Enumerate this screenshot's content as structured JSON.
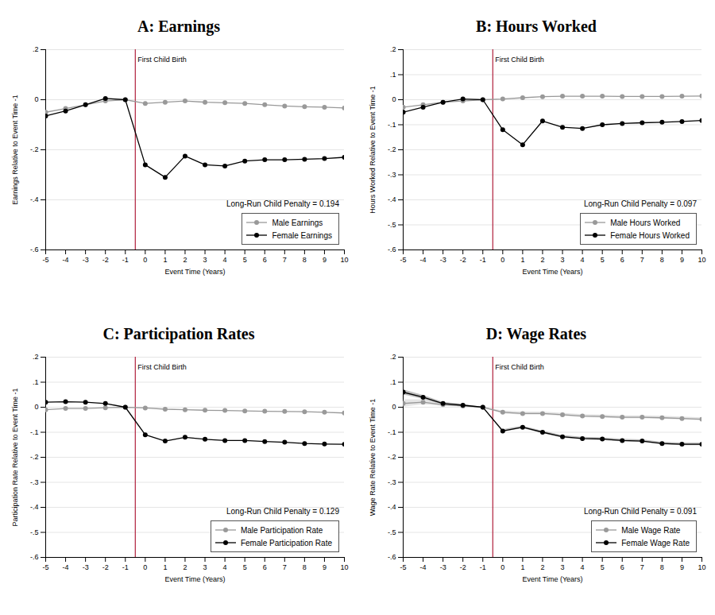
{
  "chart_data": [
    {
      "type": "line",
      "title": "A: Earnings",
      "x_label": "Event Time (Years)",
      "y_label": "Earnings Relative to Event Time -1",
      "x": [
        -5,
        -4,
        -3,
        -2,
        -1,
        0,
        1,
        2,
        3,
        4,
        5,
        6,
        7,
        8,
        9,
        10
      ],
      "series": [
        {
          "name": "Male Earnings",
          "color": "#999999",
          "marker": "circle",
          "values": [
            -0.05,
            -0.035,
            -0.02,
            -0.005,
            0,
            -0.015,
            -0.01,
            -0.005,
            -0.01,
            -0.012,
            -0.015,
            -0.02,
            -0.025,
            -0.028,
            -0.03,
            -0.033
          ]
        },
        {
          "name": "Female Earnings",
          "color": "#000000",
          "marker": "circle",
          "values": [
            -0.065,
            -0.045,
            -0.02,
            0.005,
            0,
            -0.26,
            -0.31,
            -0.225,
            -0.26,
            -0.265,
            -0.245,
            -0.24,
            -0.24,
            -0.238,
            -0.235,
            -0.23
          ]
        }
      ],
      "xlim": [
        -5,
        10
      ],
      "xticks": [
        -5,
        -4,
        -3,
        -2,
        -1,
        0,
        1,
        2,
        3,
        4,
        5,
        6,
        7,
        8,
        9,
        10
      ],
      "ylim": [
        -0.6,
        0.2
      ],
      "yticks": [
        {
          "value": 0.2,
          "label": ".2"
        },
        0,
        {
          "value": -0.2,
          "label": "-.2"
        },
        {
          "value": -0.4,
          "label": "-.4"
        },
        {
          "value": -0.6,
          "label": "-.6"
        }
      ],
      "grid": true,
      "legend": "bottom-right",
      "annotations": [
        {
          "text": "First Child Birth",
          "x": -0.5
        },
        {
          "text": "Long-Run Child Penalty = 0.194"
        }
      ]
    },
    {
      "type": "line",
      "title": "B: Hours Worked",
      "x_label": "Event Time (Years)",
      "y_label": "Hours Worked Relative to Event Time -1",
      "x": [
        -5,
        -4,
        -3,
        -2,
        -1,
        0,
        1,
        2,
        3,
        4,
        5,
        6,
        7,
        8,
        9,
        10
      ],
      "series": [
        {
          "name": "Male Hours Worked",
          "color": "#999999",
          "marker": "circle",
          "values": [
            -0.03,
            -0.02,
            -0.01,
            -0.005,
            0,
            0.003,
            0.008,
            0.012,
            0.014,
            0.014,
            0.014,
            0.013,
            0.013,
            0.013,
            0.014,
            0.015
          ]
        },
        {
          "name": "Female Hours Worked",
          "color": "#000000",
          "marker": "circle",
          "values": [
            -0.05,
            -0.03,
            -0.01,
            0.003,
            0,
            -0.12,
            -0.18,
            -0.085,
            -0.11,
            -0.115,
            -0.1,
            -0.095,
            -0.092,
            -0.09,
            -0.087,
            -0.083
          ]
        }
      ],
      "xlim": [
        -5,
        10
      ],
      "xticks": [
        -5,
        -4,
        -3,
        -2,
        -1,
        0,
        1,
        2,
        3,
        4,
        5,
        6,
        7,
        8,
        9,
        10
      ],
      "ylim": [
        -0.6,
        0.2
      ],
      "yticks": [
        {
          "value": 0.2,
          "label": ".2"
        },
        {
          "value": 0.1,
          "label": ".1"
        },
        0,
        {
          "value": -0.1,
          "label": "-.1"
        },
        {
          "value": -0.2,
          "label": "-.2"
        },
        {
          "value": -0.3,
          "label": "-.3"
        },
        {
          "value": -0.4,
          "label": "-.4"
        },
        {
          "value": -0.5,
          "label": "-.5"
        },
        {
          "value": -0.6,
          "label": "-.6"
        }
      ],
      "grid": true,
      "legend": "bottom-right",
      "annotations": [
        {
          "text": "First Child Birth",
          "x": -0.5
        },
        {
          "text": "Long-Run Child Penalty = 0.097"
        }
      ]
    },
    {
      "type": "line",
      "title": "C: Participation Rates",
      "x_label": "Event Time (Years)",
      "y_label": "Participation Rate Relative to Event Time -1",
      "x": [
        -5,
        -4,
        -3,
        -2,
        -1,
        0,
        1,
        2,
        3,
        4,
        5,
        6,
        7,
        8,
        9,
        10
      ],
      "series": [
        {
          "name": "Male Participation Rate",
          "color": "#999999",
          "marker": "circle",
          "values": [
            -0.01,
            -0.005,
            -0.005,
            -0.002,
            0,
            -0.003,
            -0.008,
            -0.01,
            -0.012,
            -0.013,
            -0.015,
            -0.016,
            -0.017,
            -0.018,
            -0.02,
            -0.023
          ]
        },
        {
          "name": "Female Participation Rate",
          "color": "#000000",
          "marker": "circle",
          "values": [
            0.02,
            0.022,
            0.02,
            0.015,
            0,
            -0.11,
            -0.135,
            -0.12,
            -0.128,
            -0.133,
            -0.133,
            -0.137,
            -0.14,
            -0.145,
            -0.147,
            -0.148
          ]
        }
      ],
      "xlim": [
        -5,
        10
      ],
      "xticks": [
        -5,
        -4,
        -3,
        -2,
        -1,
        0,
        1,
        2,
        3,
        4,
        5,
        6,
        7,
        8,
        9,
        10
      ],
      "ylim": [
        -0.6,
        0.2
      ],
      "yticks": [
        {
          "value": 0.2,
          "label": ".2"
        },
        {
          "value": 0.1,
          "label": ".1"
        },
        0,
        {
          "value": -0.1,
          "label": "-.1"
        },
        {
          "value": -0.2,
          "label": "-.2"
        },
        {
          "value": -0.3,
          "label": "-.3"
        },
        {
          "value": -0.4,
          "label": "-.4"
        },
        {
          "value": -0.5,
          "label": "-.5"
        },
        {
          "value": -0.6,
          "label": "-.6"
        }
      ],
      "grid": true,
      "legend": "bottom-right",
      "annotations": [
        {
          "text": "First Child Birth",
          "x": -0.5
        },
        {
          "text": "Long-Run Child Penalty = 0.129"
        }
      ]
    },
    {
      "type": "line",
      "title": "D: Wage Rates",
      "x_label": "Event Time (Years)",
      "y_label": "Wage Rate Relative to Event Time -1",
      "x": [
        -5,
        -4,
        -3,
        -2,
        -1,
        0,
        1,
        2,
        3,
        4,
        5,
        6,
        7,
        8,
        9,
        10
      ],
      "series": [
        {
          "name": "Male Wage Rate",
          "color": "#999999",
          "marker": "circle",
          "values": [
            0.015,
            0.02,
            0.01,
            0.005,
            0,
            -0.02,
            -0.025,
            -0.025,
            -0.03,
            -0.035,
            -0.037,
            -0.04,
            -0.04,
            -0.042,
            -0.045,
            -0.048
          ],
          "lower": [
            0.0,
            0.01,
            0.004,
            0.001,
            0,
            -0.026,
            -0.031,
            -0.031,
            -0.036,
            -0.041,
            -0.043,
            -0.046,
            -0.046,
            -0.048,
            -0.051,
            -0.054
          ],
          "upper": [
            0.03,
            0.03,
            0.016,
            0.009,
            0,
            -0.014,
            -0.019,
            -0.019,
            -0.024,
            -0.029,
            -0.031,
            -0.034,
            -0.034,
            -0.036,
            -0.039,
            -0.042
          ]
        },
        {
          "name": "Female Wage Rate",
          "color": "#000000",
          "marker": "circle",
          "values": [
            0.06,
            0.04,
            0.015,
            0.008,
            0,
            -0.095,
            -0.08,
            -0.1,
            -0.118,
            -0.125,
            -0.127,
            -0.133,
            -0.135,
            -0.145,
            -0.148,
            -0.148
          ],
          "lower": [
            0.05,
            0.032,
            0.01,
            0.004,
            0,
            -0.1,
            -0.085,
            -0.105,
            -0.123,
            -0.13,
            -0.132,
            -0.138,
            -0.14,
            -0.15,
            -0.153,
            -0.153
          ],
          "upper": [
            0.07,
            0.048,
            0.02,
            0.012,
            0,
            -0.09,
            -0.075,
            -0.095,
            -0.113,
            -0.12,
            -0.122,
            -0.128,
            -0.13,
            -0.14,
            -0.143,
            -0.143
          ]
        }
      ],
      "xlim": [
        -5,
        10
      ],
      "xticks": [
        -5,
        -4,
        -3,
        -2,
        -1,
        0,
        1,
        2,
        3,
        4,
        5,
        6,
        7,
        8,
        9,
        10
      ],
      "ylim": [
        -0.6,
        0.2
      ],
      "yticks": [
        {
          "value": 0.2,
          "label": ".2"
        },
        {
          "value": 0.1,
          "label": ".1"
        },
        0,
        {
          "value": -0.1,
          "label": "-.1"
        },
        {
          "value": -0.2,
          "label": "-.2"
        },
        {
          "value": -0.3,
          "label": "-.3"
        },
        {
          "value": -0.4,
          "label": "-.4"
        },
        {
          "value": -0.5,
          "label": "-.5"
        },
        {
          "value": -0.6,
          "label": "-.6"
        }
      ],
      "grid": true,
      "legend": "bottom-right",
      "annotations": [
        {
          "text": "First Child Birth",
          "x": -0.5
        },
        {
          "text": "Long-Run Child Penalty = 0.091"
        }
      ]
    }
  ]
}
